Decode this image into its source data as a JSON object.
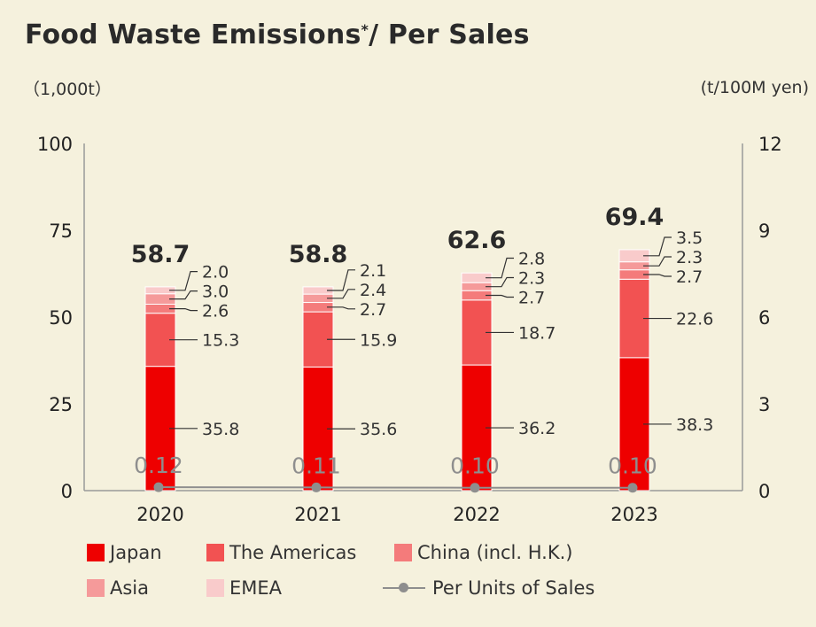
{
  "header": {
    "title_main": "Food Waste Emissions",
    "title_mark": "*",
    "title_sep": "/  Per Sales",
    "unit_left": "（1,000t）",
    "unit_right": "(t/100M yen)"
  },
  "chart_data": {
    "type": "bar",
    "stacked": true,
    "categories": [
      "2020",
      "2021",
      "2022",
      "2023"
    ],
    "series": [
      {
        "name": "Japan",
        "values": [
          35.8,
          35.6,
          36.2,
          38.3
        ],
        "color": "#ee0000"
      },
      {
        "name": "The Americas",
        "values": [
          15.3,
          15.9,
          18.7,
          22.6
        ],
        "color": "#f25252"
      },
      {
        "name": "China (incl. H.K.)",
        "values": [
          2.6,
          2.7,
          2.7,
          2.7
        ],
        "color": "#f47b7b"
      },
      {
        "name": "Asia",
        "values": [
          3.0,
          2.4,
          2.3,
          2.3
        ],
        "color": "#f59a9a"
      },
      {
        "name": "EMEA",
        "values": [
          2.0,
          2.1,
          2.8,
          3.5
        ],
        "color": "#f9cbcb"
      }
    ],
    "totals": [
      "58.7",
      "58.8",
      "62.6",
      "69.4"
    ],
    "line": {
      "name": "Per Units of Sales",
      "values": [
        0.12,
        0.11,
        0.1,
        0.1
      ],
      "labels": [
        "0.12",
        "0.11",
        "0.10",
        "0.10"
      ],
      "color": "#8e8e8e",
      "axis": "right"
    },
    "ylim": [
      0,
      100
    ],
    "y2lim": [
      0,
      12
    ],
    "yticks": [
      0,
      25,
      50,
      75,
      100
    ],
    "y2ticks": [
      0,
      3,
      6,
      9,
      12
    ],
    "legend_placement": "bottom",
    "grid": false
  },
  "legend": [
    {
      "label": "Japan",
      "color": "#ee0000",
      "kind": "box"
    },
    {
      "label": "The Americas",
      "color": "#f25252",
      "kind": "box"
    },
    {
      "label": "China (incl. H.K.)",
      "color": "#f47b7b",
      "kind": "box"
    },
    {
      "label": "Asia",
      "color": "#f59a9a",
      "kind": "box"
    },
    {
      "label": "EMEA",
      "color": "#f9cbcb",
      "kind": "box"
    },
    {
      "label": "Per Units of Sales",
      "color": "#8e8e8e",
      "kind": "line"
    }
  ]
}
